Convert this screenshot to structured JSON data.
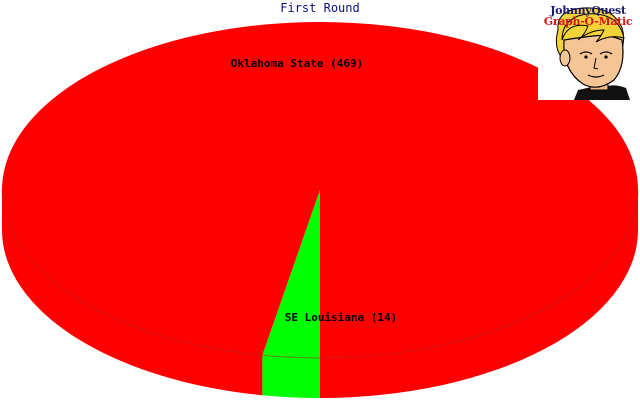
{
  "chart_data": {
    "type": "pie",
    "title": "First Round",
    "slices": [
      {
        "label": "Oklahoma State (469)",
        "value": 469,
        "color": "#ff0000"
      },
      {
        "label": "SE Louisiana (14)",
        "value": 14,
        "color": "#00ff00"
      }
    ],
    "style": "3d",
    "legend": "none"
  },
  "logo": {
    "line1": "JohnnyQuest",
    "line2": "Graph-O-Matic",
    "icon": "cartoon-boy-face-icon"
  }
}
